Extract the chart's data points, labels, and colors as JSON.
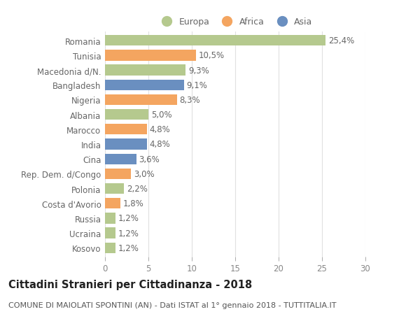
{
  "countries": [
    "Romania",
    "Tunisia",
    "Macedonia d/N.",
    "Bangladesh",
    "Nigeria",
    "Albania",
    "Marocco",
    "India",
    "Cina",
    "Rep. Dem. d/Congo",
    "Polonia",
    "Costa d'Avorio",
    "Russia",
    "Ucraina",
    "Kosovo"
  ],
  "values": [
    25.4,
    10.5,
    9.3,
    9.1,
    8.3,
    5.0,
    4.8,
    4.8,
    3.6,
    3.0,
    2.2,
    1.8,
    1.2,
    1.2,
    1.2
  ],
  "labels": [
    "25,4%",
    "10,5%",
    "9,3%",
    "9,1%",
    "8,3%",
    "5,0%",
    "4,8%",
    "4,8%",
    "3,6%",
    "3,0%",
    "2,2%",
    "1,8%",
    "1,2%",
    "1,2%",
    "1,2%"
  ],
  "continents": [
    "Europa",
    "Africa",
    "Europa",
    "Asia",
    "Africa",
    "Europa",
    "Africa",
    "Asia",
    "Asia",
    "Africa",
    "Europa",
    "Africa",
    "Europa",
    "Europa",
    "Europa"
  ],
  "colors": {
    "Europa": "#b5c98e",
    "Africa": "#f4a560",
    "Asia": "#6a8fc0"
  },
  "xlim": [
    0,
    30
  ],
  "xticks": [
    0,
    5,
    10,
    15,
    20,
    25,
    30
  ],
  "title": "Cittadini Stranieri per Cittadinanza - 2018",
  "subtitle": "COMUNE DI MAIOLATI SPONTINI (AN) - Dati ISTAT al 1° gennaio 2018 - TUTTITALIA.IT",
  "background_color": "#ffffff",
  "grid_color": "#e0e0e0",
  "bar_height": 0.72,
  "label_fontsize": 8.5,
  "tick_fontsize": 8.5,
  "ylabel_fontsize": 8.5,
  "title_fontsize": 10.5,
  "subtitle_fontsize": 8
}
